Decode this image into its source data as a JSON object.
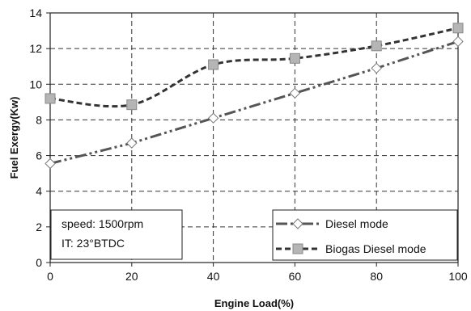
{
  "chart_data": {
    "type": "line",
    "title": "",
    "xlabel": "Engine Load(%)",
    "ylabel": "Fuel Exergy(Kw)",
    "x": [
      0,
      20,
      40,
      60,
      80,
      100
    ],
    "xlim": [
      0,
      100
    ],
    "ylim": [
      0,
      14
    ],
    "xticks": [
      "0",
      "20",
      "40",
      "60",
      "80",
      "100"
    ],
    "yticks": [
      "0",
      "2",
      "4",
      "6",
      "8",
      "10",
      "12",
      "14"
    ],
    "grid": true,
    "legend_position": "bottom-right",
    "series": [
      {
        "name": "Diesel mode",
        "values": [
          5.55,
          6.7,
          8.1,
          9.5,
          10.9,
          12.4
        ],
        "marker": "diamond",
        "line_style": "dash-dot-dot",
        "color": "#555555"
      },
      {
        "name": "Biogas Diesel mode",
        "values": [
          9.2,
          8.85,
          11.1,
          11.45,
          12.15,
          13.15
        ],
        "marker": "square",
        "line_style": "dashed",
        "color": "#333333"
      }
    ],
    "annotation_lines": [
      "speed:  1500rpm",
      "IT: 23°BTDC"
    ]
  }
}
